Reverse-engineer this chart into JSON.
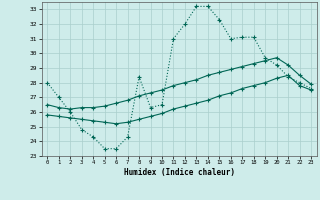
{
  "xlabel": "Humidex (Indice chaleur)",
  "bg_color": "#ceecea",
  "grid_color": "#aacfcc",
  "line_color": "#006655",
  "ylim": [
    23,
    33.5
  ],
  "xlim": [
    -0.5,
    23.5
  ],
  "yticks": [
    23,
    24,
    25,
    26,
    27,
    28,
    29,
    30,
    31,
    32,
    33
  ],
  "xticks": [
    0,
    1,
    2,
    3,
    4,
    5,
    6,
    7,
    8,
    9,
    10,
    11,
    12,
    13,
    14,
    15,
    16,
    17,
    18,
    19,
    20,
    21,
    22,
    23
  ],
  "line1_x": [
    0,
    1,
    2,
    3,
    4,
    5,
    6,
    7,
    8,
    9,
    10,
    11,
    12,
    13,
    14,
    15,
    16,
    17,
    18,
    19,
    20,
    21,
    22,
    23
  ],
  "line1_y": [
    28.0,
    27.0,
    26.0,
    24.8,
    24.3,
    23.5,
    23.5,
    24.3,
    28.4,
    26.3,
    26.5,
    31.0,
    32.0,
    33.2,
    33.2,
    32.3,
    31.0,
    31.1,
    31.1,
    29.7,
    29.2,
    28.4,
    28.0,
    27.6
  ],
  "line2_x": [
    0,
    1,
    2,
    3,
    4,
    5,
    6,
    7,
    8,
    9,
    10,
    11,
    12,
    13,
    14,
    15,
    16,
    17,
    18,
    19,
    20,
    21,
    22,
    23
  ],
  "line2_y": [
    26.5,
    26.3,
    26.2,
    26.3,
    26.3,
    26.4,
    26.6,
    26.8,
    27.1,
    27.3,
    27.5,
    27.8,
    28.0,
    28.2,
    28.5,
    28.7,
    28.9,
    29.1,
    29.3,
    29.5,
    29.7,
    29.2,
    28.5,
    27.9
  ],
  "line3_x": [
    0,
    1,
    2,
    3,
    4,
    5,
    6,
    7,
    8,
    9,
    10,
    11,
    12,
    13,
    14,
    15,
    16,
    17,
    18,
    19,
    20,
    21,
    22,
    23
  ],
  "line3_y": [
    25.8,
    25.7,
    25.6,
    25.5,
    25.4,
    25.3,
    25.2,
    25.3,
    25.5,
    25.7,
    25.9,
    26.2,
    26.4,
    26.6,
    26.8,
    27.1,
    27.3,
    27.6,
    27.8,
    28.0,
    28.3,
    28.5,
    27.8,
    27.5
  ]
}
